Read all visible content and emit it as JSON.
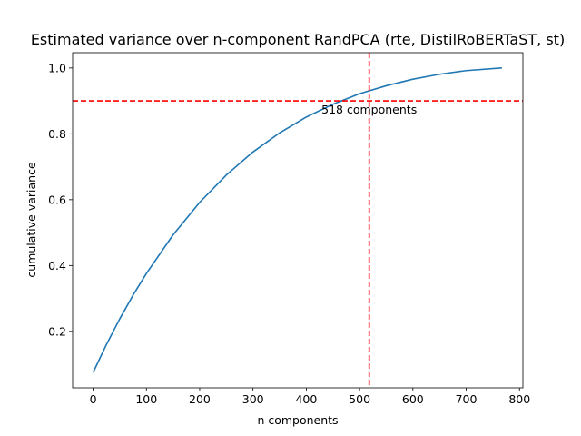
{
  "chart_data": {
    "type": "line",
    "title": "Estimated variance over n-component RandPCA (rte, DistilRoBERTaST, st)",
    "xlabel": "n components",
    "ylabel": "cumulative variance",
    "xlim": [
      -38.4,
      806.4
    ],
    "ylim": [
      0.0285,
      1.0465
    ],
    "xticks": [
      0,
      100,
      200,
      300,
      400,
      500,
      600,
      700,
      800
    ],
    "xtick_labels": [
      "0",
      "100",
      "200",
      "300",
      "400",
      "500",
      "600",
      "700",
      "800"
    ],
    "yticks": [
      0.2,
      0.4,
      0.6,
      0.8,
      1.0
    ],
    "ytick_labels": [
      "0.2",
      "0.4",
      "0.6",
      "0.8",
      "1.0"
    ],
    "grid": false,
    "series": [
      {
        "color": "#1f77b4",
        "x": [
          0,
          25,
          50,
          75,
          100,
          150,
          200,
          250,
          300,
          350,
          400,
          450,
          500,
          518,
          550,
          600,
          650,
          700,
          767
        ],
        "y": [
          0.075,
          0.16,
          0.238,
          0.31,
          0.376,
          0.493,
          0.592,
          0.675,
          0.745,
          0.803,
          0.851,
          0.89,
          0.922,
          0.9,
          0.946,
          0.966,
          0.981,
          0.992,
          1.0
        ]
      }
    ],
    "reference_lines": [
      {
        "orientation": "horizontal",
        "value": 0.9,
        "color": "#ff0000",
        "style": "dashed"
      },
      {
        "orientation": "vertical",
        "value": 518,
        "color": "#ff0000",
        "style": "dashed"
      }
    ],
    "annotations": [
      {
        "text": "518 components",
        "x": 518,
        "y": 0.9
      }
    ]
  }
}
